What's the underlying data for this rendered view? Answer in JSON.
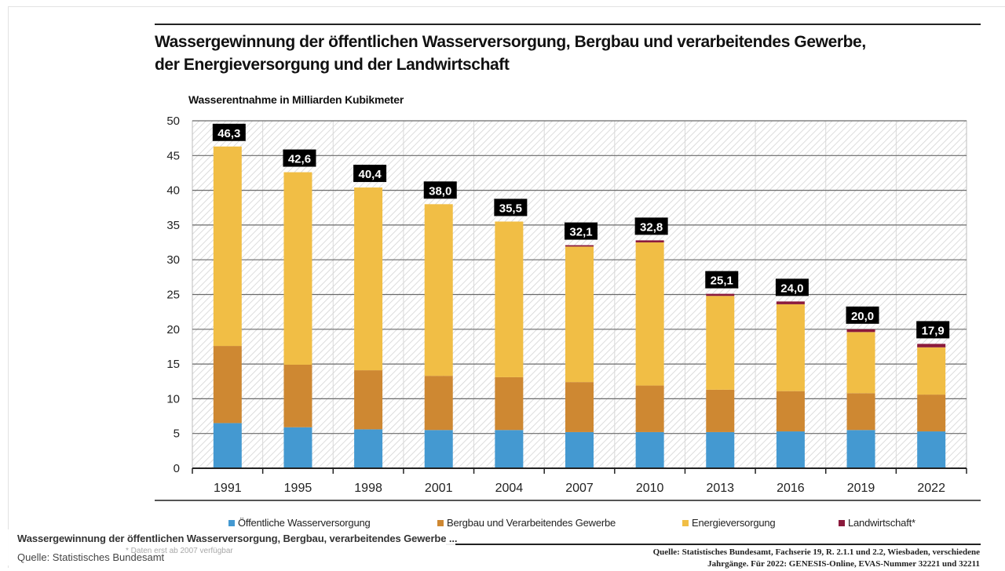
{
  "title_line1": "Wassergewinnung der öffentlichen Wasserversorgung, Bergbau und verarbeitendes Gewerbe,",
  "title_line2": "der Energieversorgung und der Landwirtschaft",
  "legend": [
    {
      "label": "Öffentliche Wasserversorgung",
      "color": "#4499D1"
    },
    {
      "label": "Bergbau und Verarbeitendes Gewerbe",
      "color": "#CE8832"
    },
    {
      "label": "Energieversorgung",
      "color": "#F1BE45"
    },
    {
      "label": "Landwirtschaft*",
      "color": "#8B1A3C"
    }
  ],
  "footnote": "* Daten erst ab 2007 verfügbar",
  "source_line1": "Quelle: Statistisches Bundesamt, Fachserie 19, R. 2.1.1 und 2.2, Wiesbaden, verschiedene",
  "source_line2": "Jahrgänge. Für 2022: GENESIS-Online, EVAS-Nummer 32221 und 32211",
  "caption": {
    "title": "Wassergewinnung der öffentlichen Wasserversorgung, Bergbau, verarbeitendes Gewerbe ...",
    "source": "Quelle: Statistisches Bundesamt"
  },
  "chart_data": {
    "type": "bar",
    "stacked": true,
    "title": "Wassergewinnung der öffentlichen Wasserversorgung, Bergbau und verarbeitendes Gewerbe, der Energieversorgung und der Landwirtschaft",
    "xlabel": "",
    "ylabel": "Wasserentnahme in Milliarden Kubikmeter",
    "ylim": [
      0,
      50
    ],
    "yticks": [
      0,
      5,
      10,
      15,
      20,
      25,
      30,
      35,
      40,
      45,
      50
    ],
    "grid": true,
    "legend_position": "bottom",
    "categories": [
      "1991",
      "1995",
      "1998",
      "2001",
      "2004",
      "2007",
      "2010",
      "2013",
      "2016",
      "2019",
      "2022"
    ],
    "series": [
      {
        "name": "Öffentliche Wasserversorgung",
        "color": "#4499D1",
        "values": [
          6.5,
          5.9,
          5.6,
          5.5,
          5.5,
          5.2,
          5.2,
          5.2,
          5.3,
          5.5,
          5.3
        ]
      },
      {
        "name": "Bergbau und Verarbeitendes Gewerbe",
        "color": "#CE8832",
        "values": [
          11.1,
          9.0,
          8.5,
          7.8,
          7.6,
          7.2,
          6.7,
          6.1,
          5.8,
          5.3,
          5.3
        ]
      },
      {
        "name": "Energieversorgung",
        "color": "#F1BE45",
        "values": [
          28.7,
          27.7,
          26.3,
          24.7,
          22.4,
          19.5,
          20.6,
          13.5,
          12.5,
          8.8,
          6.8
        ]
      },
      {
        "name": "Landwirtschaft*",
        "color": "#8B1A3C",
        "values": [
          0,
          0,
          0,
          0,
          0,
          0.2,
          0.3,
          0.3,
          0.4,
          0.4,
          0.5
        ]
      }
    ],
    "totals": [
      46.3,
      42.6,
      40.4,
      38.0,
      35.5,
      32.1,
      32.8,
      25.1,
      24.0,
      20.0,
      17.9
    ],
    "total_labels": [
      "46,3",
      "42,6",
      "40,4",
      "38,0",
      "35,5",
      "32,1",
      "32,8",
      "25,1",
      "24,0",
      "20,0",
      "17,9"
    ]
  }
}
